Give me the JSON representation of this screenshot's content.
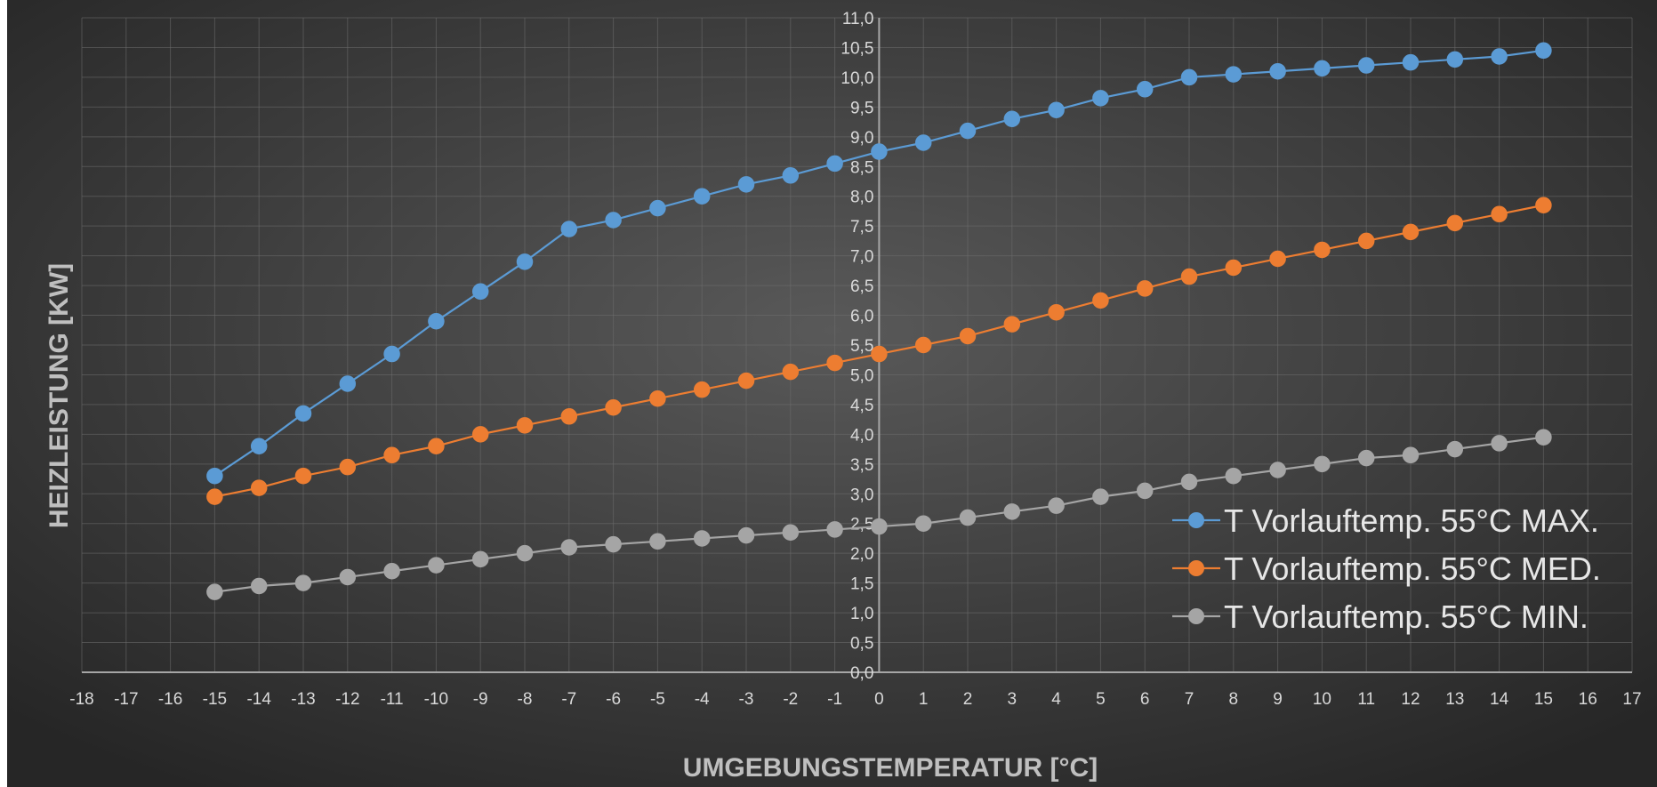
{
  "chart_data": {
    "type": "line",
    "xlabel": "UMGEBUNGSTEMPERATUR [°C]",
    "ylabel": "HEIZLEISTUNG [KW]",
    "xlim": [
      -18,
      17
    ],
    "ylim": [
      0,
      11
    ],
    "x_tick_step": 1,
    "y_tick_step": 0.5,
    "decimal_separator": ",",
    "grid": true,
    "legend_position": "bottom-right",
    "x": [
      -15,
      -14,
      -13,
      -12,
      -11,
      -10,
      -9,
      -8,
      -7,
      -6,
      -5,
      -4,
      -3,
      -2,
      -1,
      0,
      1,
      2,
      3,
      4,
      5,
      6,
      7,
      8,
      9,
      10,
      11,
      12,
      13,
      14,
      15
    ],
    "series": [
      {
        "name": "T Vorlauftemp. 55°C MAX.",
        "color": "#5b9bd5",
        "values": [
          3.3,
          3.8,
          4.35,
          4.85,
          5.35,
          5.9,
          6.4,
          6.9,
          7.45,
          7.6,
          7.8,
          8.0,
          8.2,
          8.35,
          8.55,
          8.75,
          8.9,
          9.1,
          9.3,
          9.45,
          9.65,
          9.8,
          10.0,
          10.05,
          10.1,
          10.15,
          10.2,
          10.25,
          10.3,
          10.35,
          10.45
        ]
      },
      {
        "name": "T Vorlauftemp. 55°C MED.",
        "color": "#ed7d31",
        "values": [
          2.95,
          3.1,
          3.3,
          3.45,
          3.65,
          3.8,
          4.0,
          4.15,
          4.3,
          4.45,
          4.6,
          4.75,
          4.9,
          5.05,
          5.2,
          5.35,
          5.5,
          5.65,
          5.85,
          6.05,
          6.25,
          6.45,
          6.65,
          6.8,
          6.95,
          7.1,
          7.25,
          7.4,
          7.55,
          7.7,
          7.85
        ]
      },
      {
        "name": "T Vorlauftemp. 55°C MIN.",
        "color": "#a5a5a5",
        "values": [
          1.35,
          1.45,
          1.5,
          1.6,
          1.7,
          1.8,
          1.9,
          2.0,
          2.1,
          2.15,
          2.2,
          2.25,
          2.3,
          2.35,
          2.4,
          2.45,
          2.5,
          2.6,
          2.7,
          2.8,
          2.95,
          3.05,
          3.2,
          3.3,
          3.4,
          3.5,
          3.6,
          3.65,
          3.75,
          3.85,
          3.95
        ]
      }
    ]
  }
}
